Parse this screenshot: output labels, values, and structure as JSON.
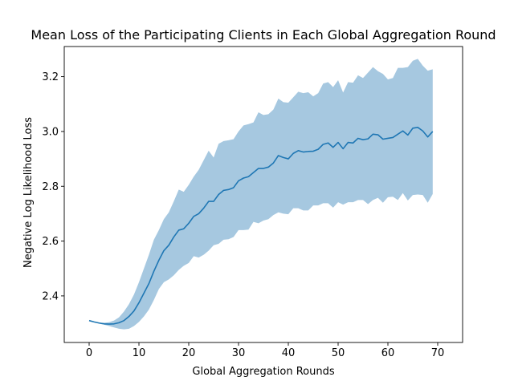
{
  "chart_data": {
    "type": "line",
    "title": "Mean Loss of the Participating Clients in Each Global Aggregation Round",
    "xlabel": "Global Aggregation Rounds",
    "ylabel": "Negative Log Likelihood Loss",
    "xlim": [
      -5,
      75
    ],
    "ylim": [
      2.23,
      3.31
    ],
    "x_ticks": [
      0,
      10,
      20,
      30,
      40,
      50,
      60,
      70
    ],
    "x_tick_labels": [
      "0",
      "10",
      "20",
      "30",
      "40",
      "50",
      "60",
      "70"
    ],
    "y_ticks": [
      2.4,
      2.6,
      2.8,
      3.0,
      3.2
    ],
    "y_tick_labels": [
      "2.4",
      "2.6",
      "2.8",
      "3.0",
      "3.2"
    ],
    "grid": false,
    "legend": "none",
    "colors": {
      "line": "#1f77b4",
      "band": "#a6c8e0"
    },
    "x": [
      0,
      1,
      2,
      3,
      4,
      5,
      6,
      7,
      8,
      9,
      10,
      11,
      12,
      13,
      14,
      15,
      16,
      17,
      18,
      19,
      20,
      21,
      22,
      23,
      24,
      25,
      26,
      27,
      28,
      29,
      30,
      31,
      32,
      33,
      34,
      35,
      36,
      37,
      38,
      39,
      40,
      41,
      42,
      43,
      44,
      45,
      46,
      47,
      48,
      49,
      50,
      51,
      52,
      53,
      54,
      55,
      56,
      57,
      58,
      59,
      60,
      61,
      62,
      63,
      64,
      65,
      66,
      67,
      68,
      69
    ],
    "series": [
      {
        "role": "mean",
        "values": [
          2.31,
          2.305,
          2.301,
          2.298,
          2.297,
          2.298,
          2.302,
          2.31,
          2.325,
          2.345,
          2.375,
          2.41,
          2.445,
          2.49,
          2.53,
          2.565,
          2.585,
          2.615,
          2.64,
          2.645,
          2.665,
          2.69,
          2.7,
          2.72,
          2.745,
          2.745,
          2.77,
          2.785,
          2.788,
          2.795,
          2.82,
          2.83,
          2.835,
          2.85,
          2.865,
          2.865,
          2.87,
          2.885,
          2.912,
          2.905,
          2.9,
          2.92,
          2.93,
          2.925,
          2.927,
          2.928,
          2.935,
          2.953,
          2.958,
          2.942,
          2.96,
          2.937,
          2.96,
          2.958,
          2.975,
          2.97,
          2.973,
          2.99,
          2.988,
          2.972,
          2.975,
          2.978,
          2.99,
          3.002,
          2.987,
          3.012,
          3.015,
          3.002,
          2.98,
          3.0
        ]
      },
      {
        "role": "upper",
        "values": [
          2.31,
          2.305,
          2.302,
          2.302,
          2.304,
          2.31,
          2.322,
          2.343,
          2.37,
          2.405,
          2.45,
          2.5,
          2.55,
          2.605,
          2.64,
          2.68,
          2.705,
          2.745,
          2.788,
          2.78,
          2.805,
          2.835,
          2.86,
          2.895,
          2.93,
          2.905,
          2.955,
          2.965,
          2.968,
          2.972,
          3.0,
          3.022,
          3.027,
          3.033,
          3.07,
          3.06,
          3.063,
          3.08,
          3.12,
          3.107,
          3.105,
          3.125,
          3.145,
          3.14,
          3.143,
          3.128,
          3.14,
          3.175,
          3.18,
          3.162,
          3.187,
          3.142,
          3.18,
          3.178,
          3.205,
          3.195,
          3.215,
          3.235,
          3.22,
          3.21,
          3.19,
          3.195,
          3.232,
          3.232,
          3.235,
          3.258,
          3.265,
          3.24,
          3.222,
          3.227
        ]
      },
      {
        "role": "lower",
        "values": [
          2.31,
          2.305,
          2.3,
          2.295,
          2.29,
          2.285,
          2.28,
          2.278,
          2.28,
          2.29,
          2.305,
          2.325,
          2.35,
          2.385,
          2.425,
          2.45,
          2.46,
          2.475,
          2.495,
          2.51,
          2.52,
          2.545,
          2.54,
          2.55,
          2.565,
          2.585,
          2.59,
          2.605,
          2.607,
          2.615,
          2.64,
          2.64,
          2.642,
          2.67,
          2.665,
          2.675,
          2.68,
          2.695,
          2.705,
          2.7,
          2.698,
          2.72,
          2.72,
          2.712,
          2.712,
          2.73,
          2.73,
          2.738,
          2.738,
          2.722,
          2.742,
          2.733,
          2.742,
          2.742,
          2.75,
          2.75,
          2.735,
          2.75,
          2.758,
          2.74,
          2.76,
          2.762,
          2.75,
          2.775,
          2.748,
          2.768,
          2.77,
          2.768,
          2.74,
          2.772
        ]
      }
    ]
  }
}
